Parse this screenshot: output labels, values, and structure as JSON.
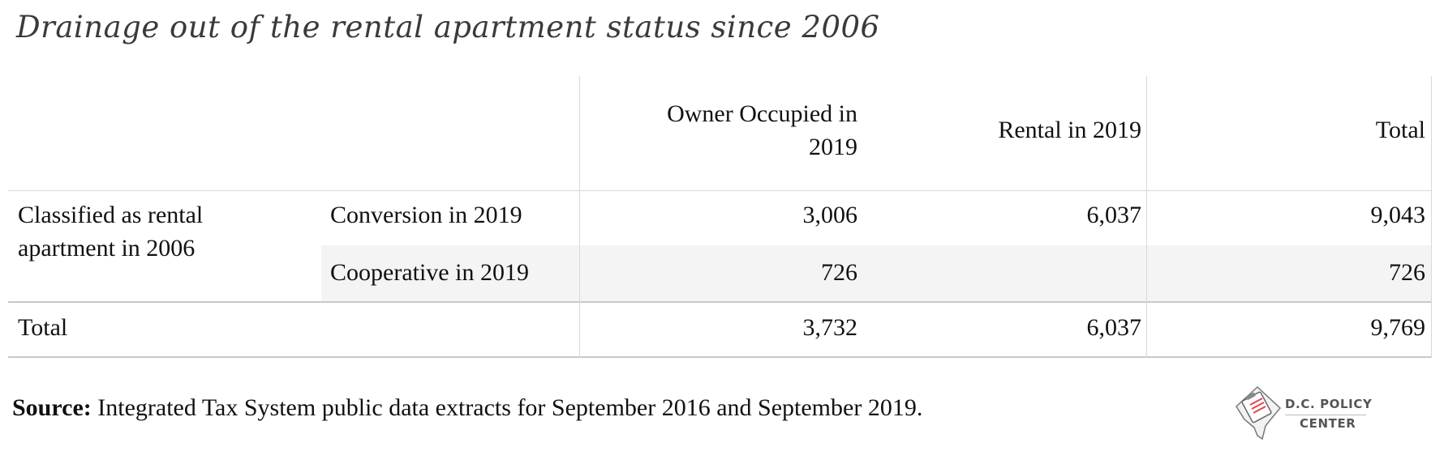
{
  "title": "Drainage out of the rental apartment status since 2006",
  "chart_data": {
    "type": "table",
    "columns": [
      "",
      "",
      "Owner Occupied in 2019",
      "Rental in 2019",
      "Total"
    ],
    "column_headers": {
      "owner_line1": "Owner Occupied in",
      "owner_line2": "2019",
      "rental": "Rental in 2019",
      "total": "Total"
    },
    "groups": [
      {
        "label_line1": "Classified as rental",
        "label_line2": "apartment in 2006",
        "rows": [
          {
            "label": "Conversion in 2019",
            "owner_occupied": "3,006",
            "rental": "6,037",
            "total": "9,043"
          },
          {
            "label": "Cooperative in 2019",
            "owner_occupied": "726",
            "rental": "",
            "total": "726"
          }
        ]
      }
    ],
    "totals": {
      "label": "Total",
      "owner_occupied": "3,732",
      "rental": "6,037",
      "total": "9,769"
    }
  },
  "source": {
    "label": "Source:",
    "text": " Integrated Tax System public data extracts for September 2016 and September 2019."
  },
  "logo": {
    "line1": "D.C. POLICY",
    "line2": "CENTER",
    "icon": "dc-map-clipboard-icon",
    "accent_color": "#e0474c"
  }
}
